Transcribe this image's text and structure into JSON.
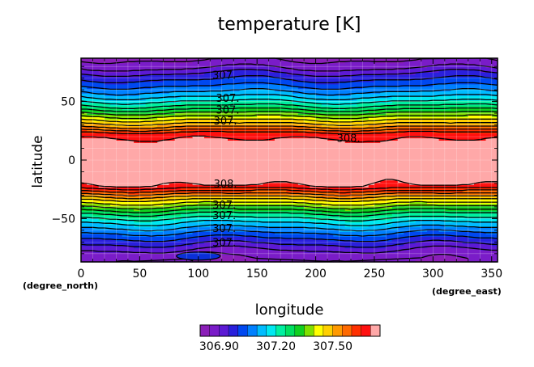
{
  "chart_data": {
    "type": "heatmap",
    "title": "temperature [K]",
    "xlabel": "longitude",
    "ylabel": "latitude",
    "x_unit": "(degree_east)",
    "y_unit": "(degree_north)",
    "xlim": [
      0,
      355
    ],
    "ylim": [
      -87,
      87
    ],
    "xticks": [
      0,
      50,
      100,
      150,
      200,
      250,
      300,
      350
    ],
    "yticks": [
      -50,
      0,
      50
    ],
    "grid": true,
    "colorbar": {
      "placement": "bottom",
      "levels": [
        306.8,
        306.85,
        306.9,
        306.95,
        307.0,
        307.05,
        307.1,
        307.15,
        307.2,
        307.25,
        307.3,
        307.35,
        307.4,
        307.45,
        307.5,
        307.55,
        307.6,
        307.65,
        307.7,
        307.75
      ],
      "labels": [
        "306.90",
        "307.20",
        "307.50"
      ],
      "label_values": [
        306.9,
        307.2,
        307.5
      ],
      "colors": [
        "#8b1fb8",
        "#7a1cc8",
        "#5c1ad4",
        "#2a20dc",
        "#0048f0",
        "#0080ff",
        "#00bcff",
        "#00e8f0",
        "#00f0a0",
        "#00e060",
        "#10d020",
        "#80e000",
        "#ffff00",
        "#ffd000",
        "#ff9a00",
        "#ff6a00",
        "#ff3000",
        "#ff1010",
        "#ffa8a8"
      ]
    },
    "fields": {
      "latitude_band_values_K": {
        "lat": [
          -87,
          -80,
          -72,
          -65,
          -58,
          -52,
          -46,
          -40,
          -34,
          -28,
          -22,
          -10,
          0,
          10,
          22,
          28,
          34,
          40,
          46,
          52,
          58,
          65,
          72,
          80,
          87
        ],
        "value": [
          306.85,
          306.87,
          306.95,
          307.02,
          307.1,
          307.17,
          307.25,
          307.35,
          307.45,
          307.57,
          307.7,
          307.74,
          307.76,
          307.74,
          307.68,
          307.55,
          307.45,
          307.35,
          307.25,
          307.17,
          307.1,
          307.03,
          306.97,
          306.88,
          306.84
        ]
      },
      "local_minimum": {
        "lon": 100,
        "lat": -82
      },
      "warm_core_breaks_lon": [
        265
      ]
    },
    "contour_labels": [
      {
        "text": "307.",
        "lon": 122,
        "lat": 73
      },
      {
        "text": "307.",
        "lon": 125,
        "lat": 53
      },
      {
        "text": "307.",
        "lon": 125,
        "lat": 43
      },
      {
        "text": "307.",
        "lon": 123,
        "lat": 34
      },
      {
        "text": "308.",
        "lon": 228,
        "lat": 19
      },
      {
        "text": "308.",
        "lon": 123,
        "lat": -20
      },
      {
        "text": "307.",
        "lon": 122,
        "lat": -38
      },
      {
        "text": "307.",
        "lon": 122,
        "lat": -47
      },
      {
        "text": "307.",
        "lon": 122,
        "lat": -58
      },
      {
        "text": "307.",
        "lon": 122,
        "lat": -70
      }
    ]
  }
}
